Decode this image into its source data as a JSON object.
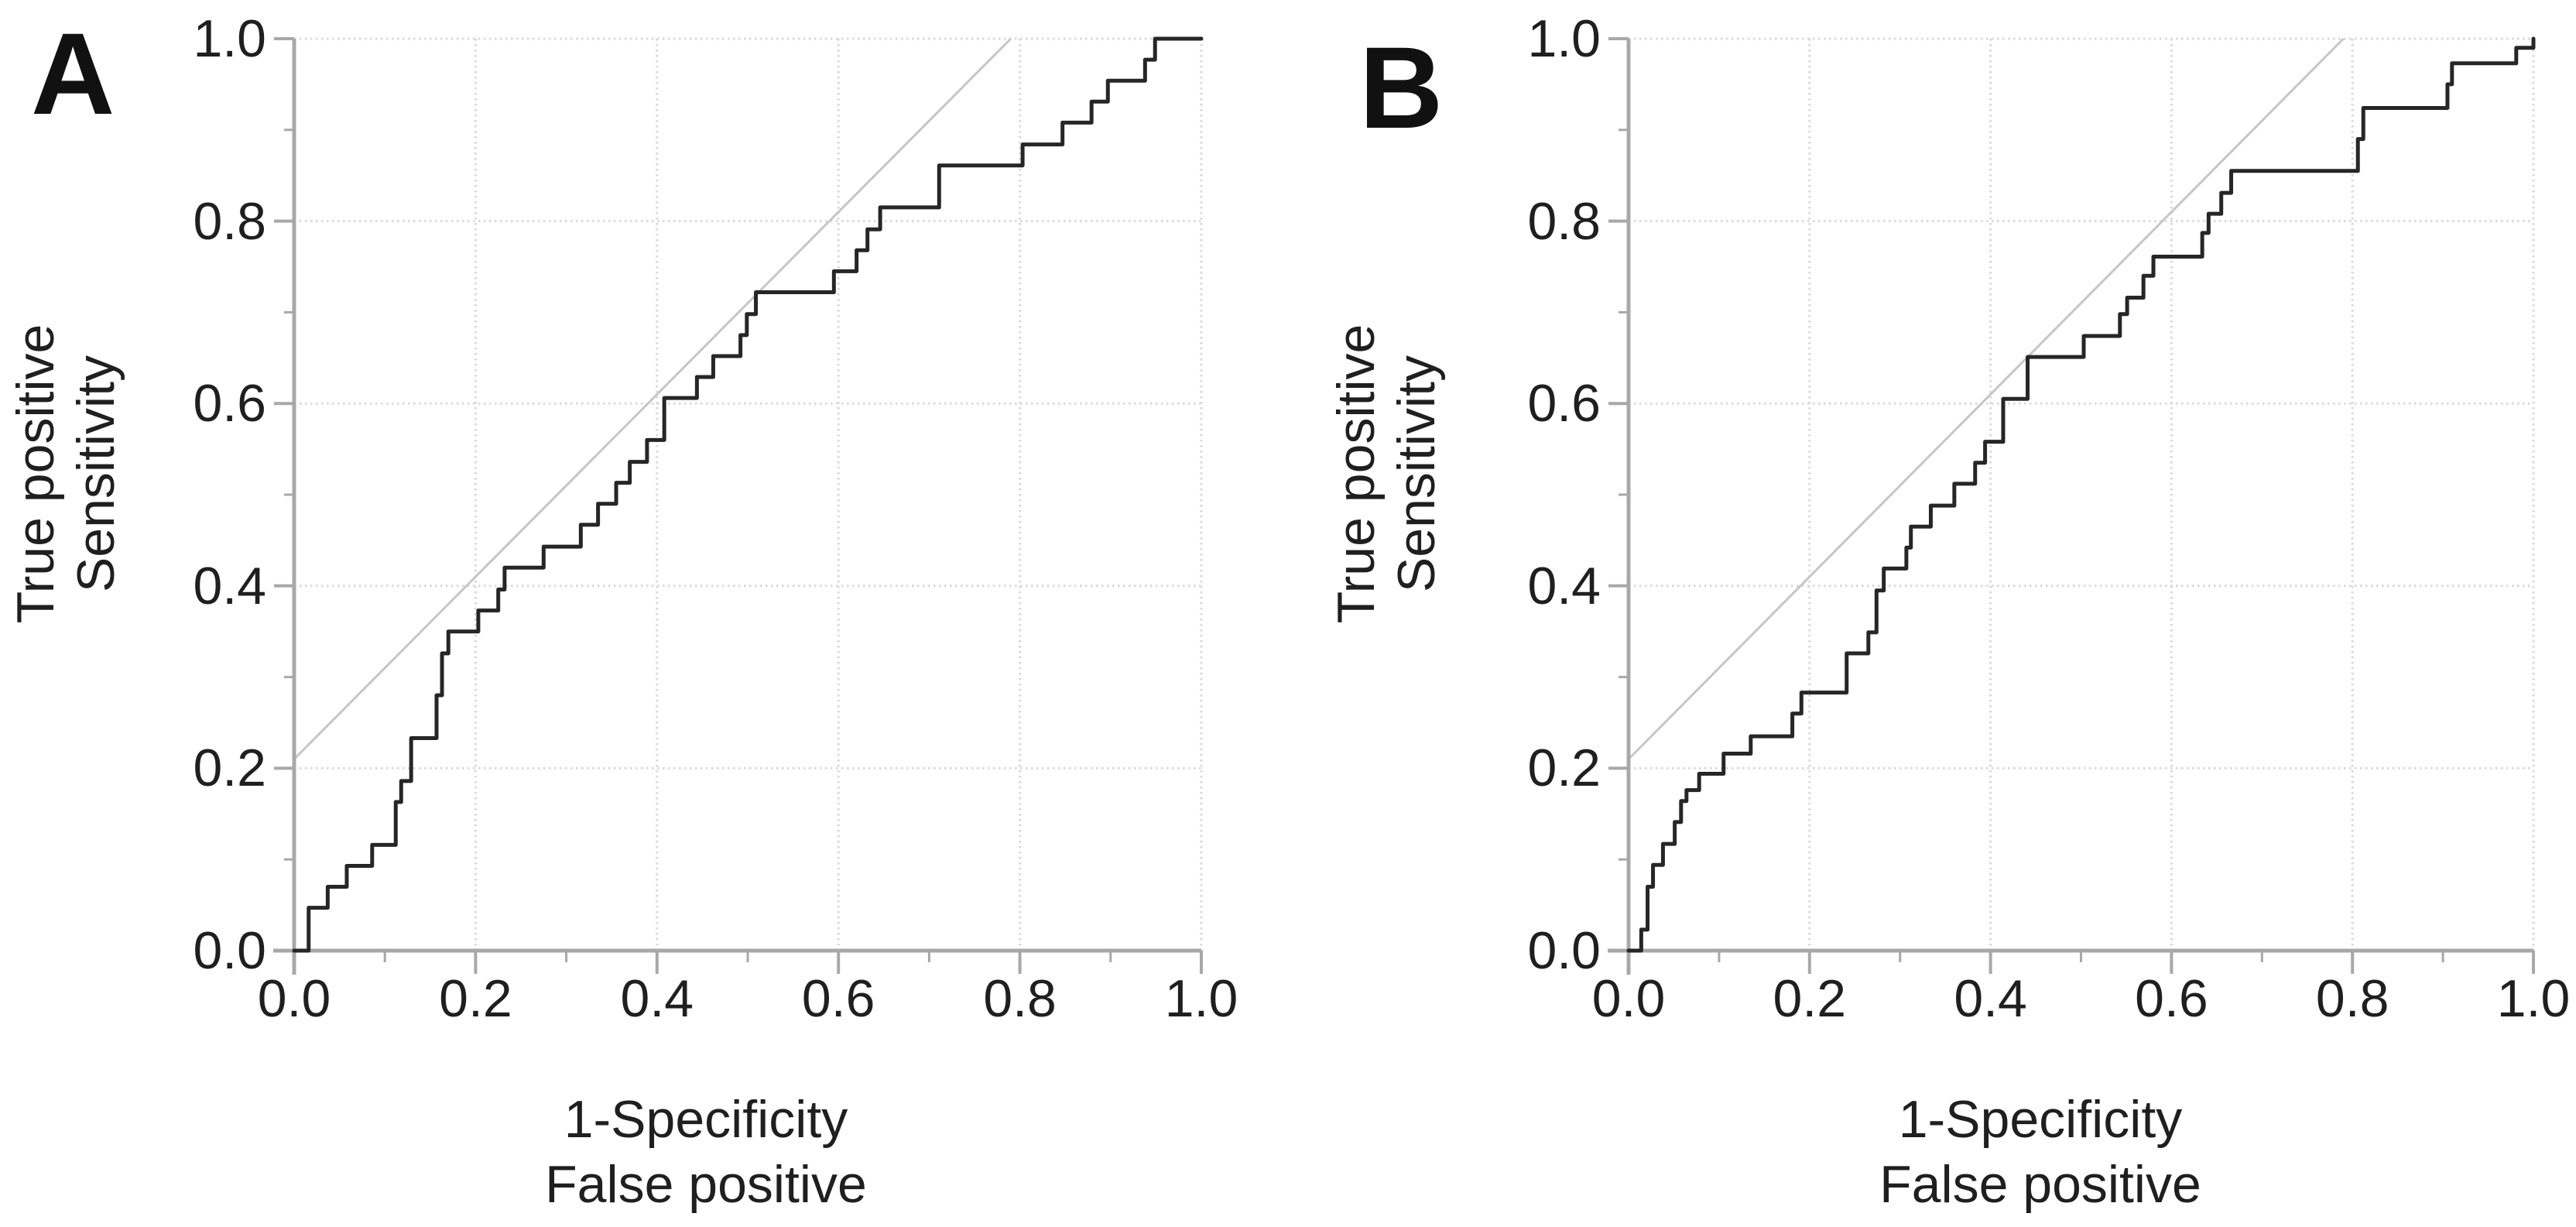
{
  "figure": {
    "background": "#ffffff"
  },
  "colors": {
    "curve": "#262626",
    "axis": "#a8a8a8",
    "grid": "#d9d9d9",
    "reference": "#c6c6c6",
    "text": "#1f1f1f",
    "background": "#ffffff"
  },
  "chart_data": [
    {
      "type": "line",
      "panel_label": "A",
      "xlabel_line1": "1-Specificity",
      "xlabel_line2": "False positive",
      "ylabel_line1": "True positive",
      "ylabel_line2": "Sensitivity",
      "xlim": [
        0,
        1
      ],
      "ylim": [
        0,
        1
      ],
      "grid": true,
      "legend": "none",
      "ticks": {
        "labels": [
          "0.0",
          "0.2",
          "0.4",
          "0.6",
          "0.8",
          "1.0"
        ],
        "values": [
          0,
          0.2,
          0.4,
          0.6,
          0.8,
          1.0
        ],
        "minor": [
          0.1,
          0.3,
          0.5,
          0.7,
          0.9
        ]
      },
      "reference_line": {
        "from": [
          0,
          0.21
        ],
        "to": [
          0.79,
          1.0
        ]
      },
      "roc_start": [
        0,
        0
      ],
      "roc_steps": [
        [
          0.016,
          0.047
        ],
        [
          0.037,
          0.07
        ],
        [
          0.058,
          0.093
        ],
        [
          0.086,
          0.116
        ],
        [
          0.112,
          0.163
        ],
        [
          0.118,
          0.186
        ],
        [
          0.129,
          0.233
        ],
        [
          0.157,
          0.28
        ],
        [
          0.163,
          0.326
        ],
        [
          0.17,
          0.35
        ],
        [
          0.203,
          0.373
        ],
        [
          0.225,
          0.396
        ],
        [
          0.232,
          0.42
        ],
        [
          0.275,
          0.443
        ],
        [
          0.316,
          0.467
        ],
        [
          0.335,
          0.49
        ],
        [
          0.355,
          0.513
        ],
        [
          0.37,
          0.536
        ],
        [
          0.389,
          0.56
        ],
        [
          0.408,
          0.606
        ],
        [
          0.444,
          0.629
        ],
        [
          0.462,
          0.652
        ],
        [
          0.492,
          0.675
        ],
        [
          0.499,
          0.698
        ],
        [
          0.509,
          0.722
        ],
        [
          0.595,
          0.745
        ],
        [
          0.62,
          0.768
        ],
        [
          0.632,
          0.791
        ],
        [
          0.646,
          0.815
        ],
        [
          0.711,
          0.861
        ],
        [
          0.803,
          0.884
        ],
        [
          0.847,
          0.908
        ],
        [
          0.879,
          0.931
        ],
        [
          0.897,
          0.954
        ],
        [
          0.938,
          0.977
        ],
        [
          0.949,
          1.0
        ]
      ],
      "roc_end": [
        1,
        1
      ]
    },
    {
      "type": "line",
      "panel_label": "B",
      "xlabel_line1": "1-Specificity",
      "xlabel_line2": "False positive",
      "ylabel_line1": "True positive",
      "ylabel_line2": "Sensitivity",
      "xlim": [
        0,
        1
      ],
      "ylim": [
        0,
        1
      ],
      "grid": true,
      "legend": "none",
      "ticks": {
        "labels": [
          "0.0",
          "0.2",
          "0.4",
          "0.6",
          "0.8",
          "1.0"
        ],
        "values": [
          0,
          0.2,
          0.4,
          0.6,
          0.8,
          1.0
        ],
        "minor": [
          0.1,
          0.3,
          0.5,
          0.7,
          0.9
        ]
      },
      "reference_line": {
        "from": [
          0,
          0.21
        ],
        "to": [
          0.79,
          1.0
        ]
      },
      "roc_start": [
        0,
        0
      ],
      "roc_steps": [
        [
          0.014,
          0.023
        ],
        [
          0.021,
          0.07
        ],
        [
          0.027,
          0.094
        ],
        [
          0.038,
          0.117
        ],
        [
          0.051,
          0.141
        ],
        [
          0.058,
          0.164
        ],
        [
          0.064,
          0.176
        ],
        [
          0.078,
          0.194
        ],
        [
          0.105,
          0.216
        ],
        [
          0.135,
          0.235
        ],
        [
          0.181,
          0.26
        ],
        [
          0.191,
          0.283
        ],
        [
          0.241,
          0.326
        ],
        [
          0.265,
          0.349
        ],
        [
          0.274,
          0.395
        ],
        [
          0.282,
          0.419
        ],
        [
          0.307,
          0.442
        ],
        [
          0.312,
          0.465
        ],
        [
          0.334,
          0.488
        ],
        [
          0.36,
          0.512
        ],
        [
          0.383,
          0.535
        ],
        [
          0.394,
          0.558
        ],
        [
          0.414,
          0.605
        ],
        [
          0.441,
          0.651
        ],
        [
          0.503,
          0.674
        ],
        [
          0.543,
          0.698
        ],
        [
          0.551,
          0.716
        ],
        [
          0.569,
          0.74
        ],
        [
          0.58,
          0.761
        ],
        [
          0.634,
          0.787
        ],
        [
          0.641,
          0.808
        ],
        [
          0.655,
          0.831
        ],
        [
          0.666,
          0.855
        ],
        [
          0.806,
          0.89
        ],
        [
          0.812,
          0.924
        ],
        [
          0.905,
          0.95
        ],
        [
          0.91,
          0.973
        ],
        [
          0.981,
          0.99
        ]
      ],
      "roc_end": [
        1,
        0.99
      ]
    }
  ]
}
